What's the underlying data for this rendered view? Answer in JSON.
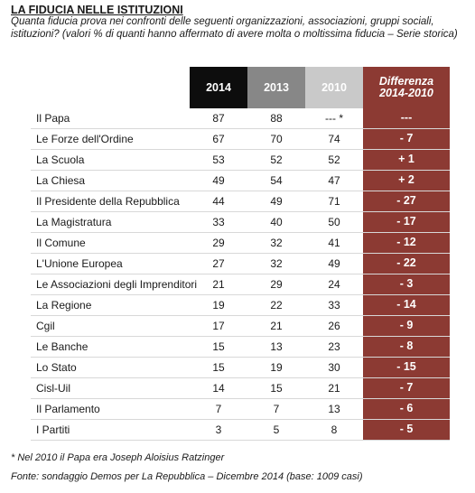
{
  "title": "LA FIDUCIA NELLE ISTITUZIONI",
  "subtitle": "Quanta fiducia prova nei confronti delle seguenti organizzazioni, associazioni, gruppi sociali, istituzioni? (valori % di quanti hanno affermato di avere molta o moltissima fiducia – Serie storica)",
  "columns": {
    "y2014": "2014",
    "y2013": "2013",
    "y2010": "2010",
    "diff_line1": "Differenza",
    "diff_line2": "2014-2010"
  },
  "colors": {
    "col2014": "#0d0d0d",
    "col2013": "#878787",
    "col2010": "#c9c9c9",
    "diff": "#8c3a33"
  },
  "rows": [
    {
      "label": "Il Papa",
      "v2014": "87",
      "v2013": "88",
      "v2010": "--- *",
      "diff": "---"
    },
    {
      "label": "Le Forze dell'Ordine",
      "v2014": "67",
      "v2013": "70",
      "v2010": "74",
      "diff": "- 7"
    },
    {
      "label": "La Scuola",
      "v2014": "53",
      "v2013": "52",
      "v2010": "52",
      "diff": "+ 1"
    },
    {
      "label": "La Chiesa",
      "v2014": "49",
      "v2013": "54",
      "v2010": "47",
      "diff": "+ 2"
    },
    {
      "label": "Il Presidente della Repubblica",
      "v2014": "44",
      "v2013": "49",
      "v2010": "71",
      "diff": "- 27"
    },
    {
      "label": "La Magistratura",
      "v2014": "33",
      "v2013": "40",
      "v2010": "50",
      "diff": "- 17"
    },
    {
      "label": "Il Comune",
      "v2014": "29",
      "v2013": "32",
      "v2010": "41",
      "diff": "- 12"
    },
    {
      "label": "L'Unione Europea",
      "v2014": "27",
      "v2013": "32",
      "v2010": "49",
      "diff": "- 22"
    },
    {
      "label": "Le Associazioni degli Imprenditori",
      "v2014": "21",
      "v2013": "29",
      "v2010": "24",
      "diff": "- 3"
    },
    {
      "label": "La Regione",
      "v2014": "19",
      "v2013": "22",
      "v2010": "33",
      "diff": "- 14"
    },
    {
      "label": "Cgil",
      "v2014": "17",
      "v2013": "21",
      "v2010": "26",
      "diff": "- 9"
    },
    {
      "label": "Le Banche",
      "v2014": "15",
      "v2013": "13",
      "v2010": "23",
      "diff": "- 8"
    },
    {
      "label": "Lo Stato",
      "v2014": "15",
      "v2013": "19",
      "v2010": "30",
      "diff": "- 15"
    },
    {
      "label": "Cisl-Uil",
      "v2014": "14",
      "v2013": "15",
      "v2010": "21",
      "diff": "- 7"
    },
    {
      "label": "Il Parlamento",
      "v2014": "7",
      "v2013": "7",
      "v2010": "13",
      "diff": "- 6"
    },
    {
      "label": "I Partiti",
      "v2014": "3",
      "v2013": "5",
      "v2010": "8",
      "diff": "- 5"
    }
  ],
  "footnote": "* Nel 2010 il Papa era Joseph Aloisius Ratzinger",
  "source": "Fonte: sondaggio Demos per La Repubblica – Dicembre 2014 (base: 1009 casi)"
}
